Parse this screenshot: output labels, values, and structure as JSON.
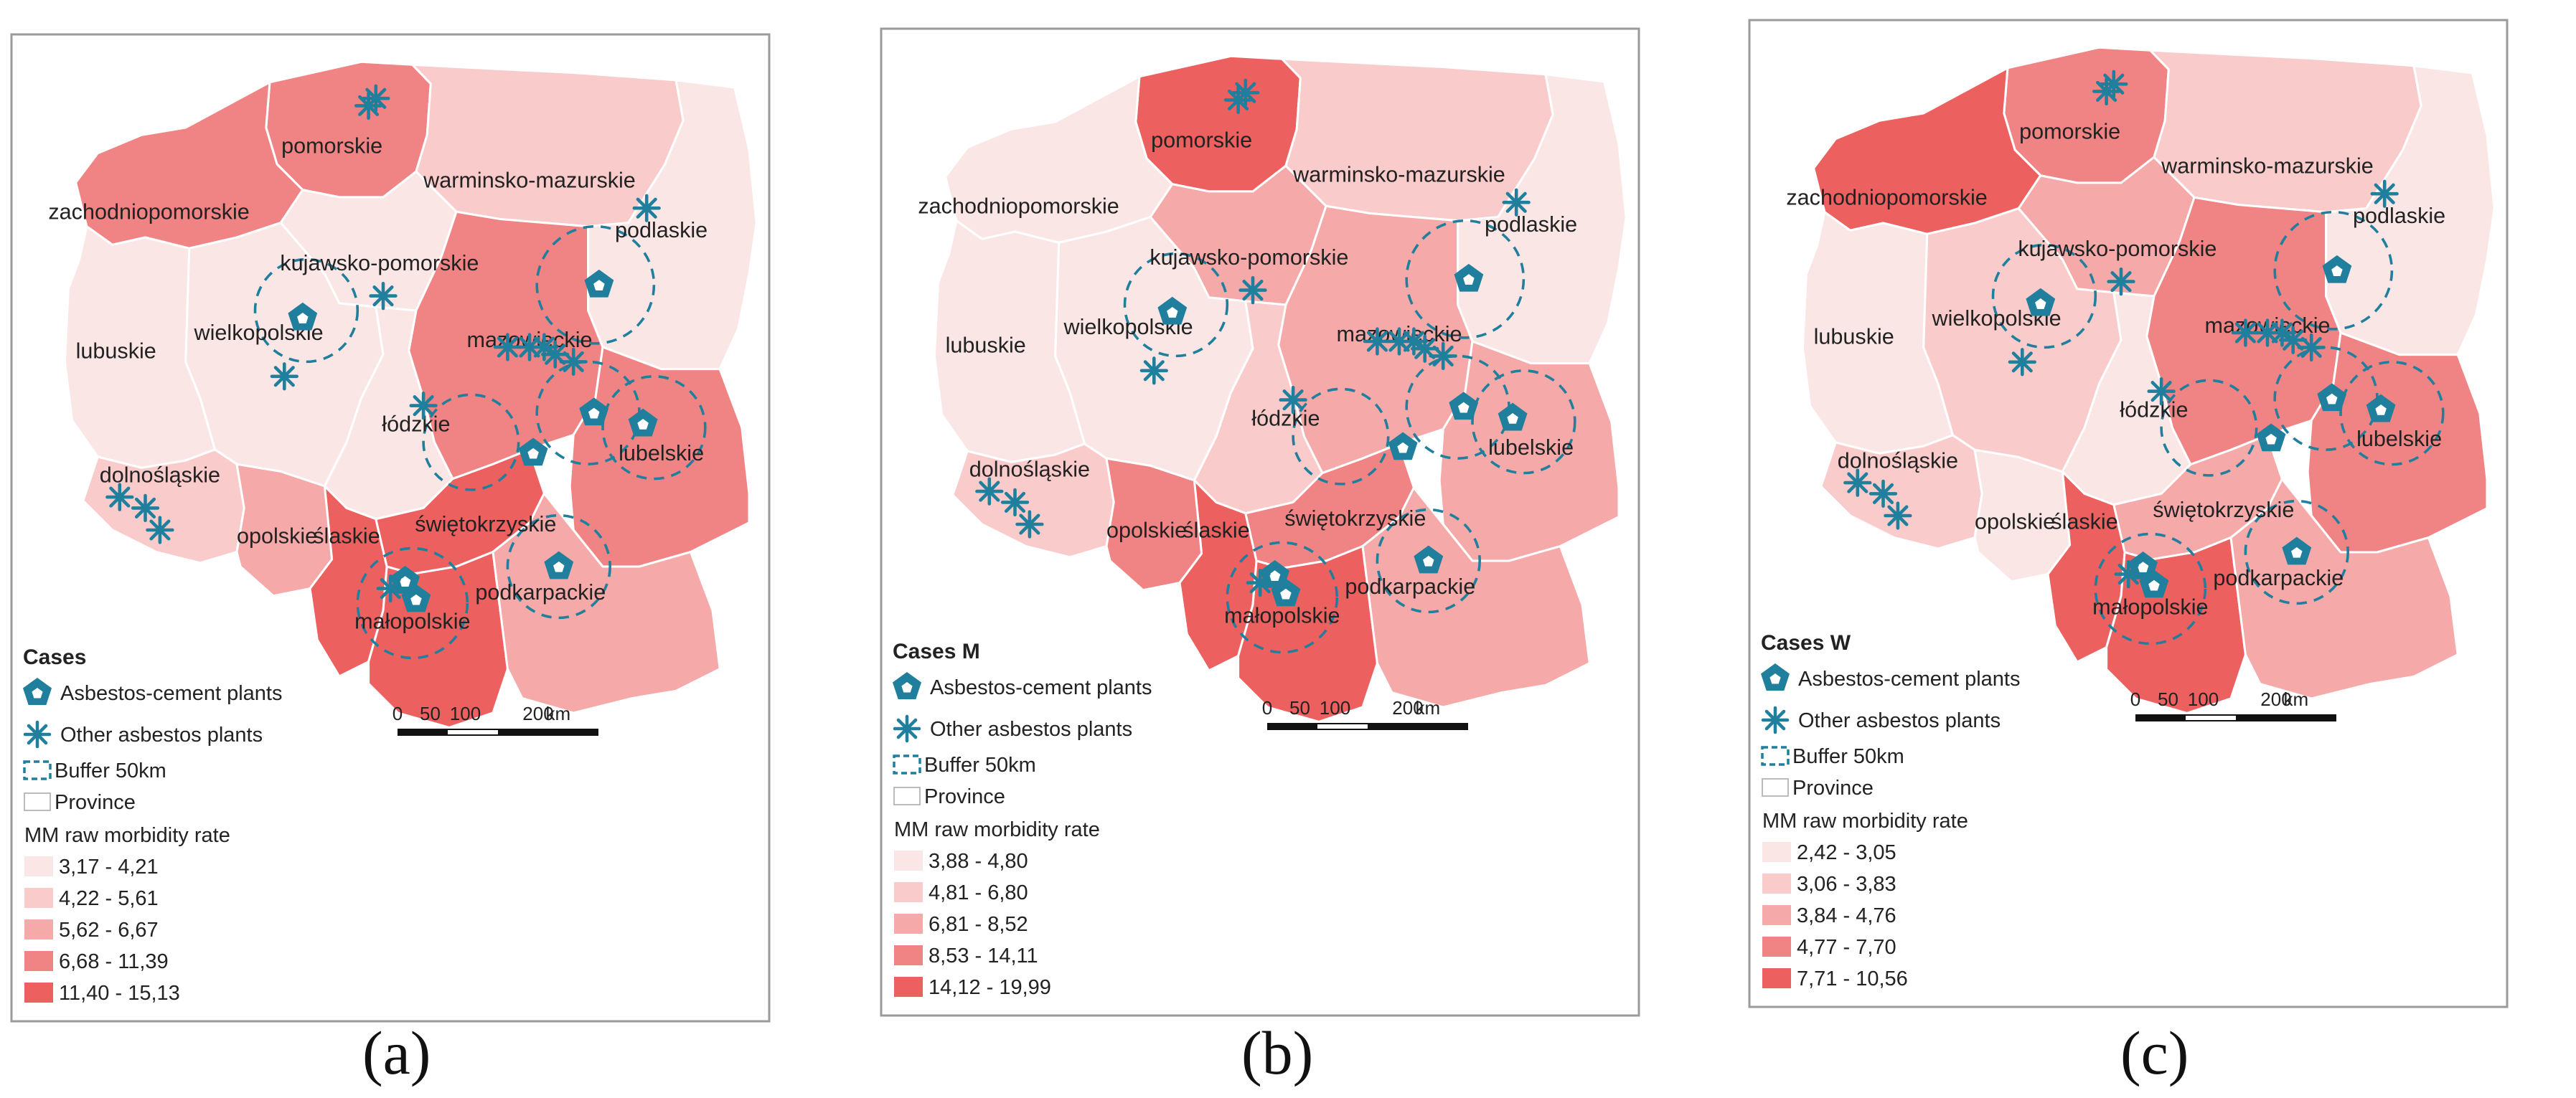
{
  "colors": {
    "class1": "#fbe6e6",
    "class2": "#f9cbcb",
    "class3": "#f5a9a9",
    "class4": "#f08484",
    "class5": "#ec6060",
    "plant": "#1f7f9c"
  },
  "panels": [
    {
      "id": "a",
      "caption": "(a)",
      "legend_title": "Cases",
      "legend": {
        "asbestos_cement": "Asbestos-cement plants",
        "other_plants": "Other asbestos plants",
        "buffer": "Buffer 50km",
        "province": "Province",
        "rate_title": "MM raw morbidity rate",
        "classes": [
          "3,17 - 4,21",
          "4,22 - 5,61",
          "5,62 - 6,67",
          "6,68 - 11,39",
          "11,40 - 15,13"
        ]
      },
      "scale": {
        "ticks": [
          "0",
          "50",
          "100",
          "200"
        ],
        "unit": "km"
      },
      "provinces": {
        "pomorskie": {
          "label": "pomorskie",
          "class": 4
        },
        "zachodniopomorskie": {
          "label": "zachodniopomorskie",
          "class": 4
        },
        "warminsko": {
          "label": "warminsko-mazurskie",
          "class": 2
        },
        "podlaskie": {
          "label": "podlaskie",
          "class": 1
        },
        "kujawsko": {
          "label": "kujawsko-pomorskie",
          "class": 1
        },
        "wielkopolskie": {
          "label": "wielkopolskie",
          "class": 1
        },
        "lubuskie": {
          "label": "lubuskie",
          "class": 1
        },
        "mazowieckie": {
          "label": "mazowieckie",
          "class": 4
        },
        "lodzkie": {
          "label": "łódzkie",
          "class": 1
        },
        "lubelskie": {
          "label": "lubelskie",
          "class": 4
        },
        "dolnoslaskie": {
          "label": "dolnośląskie",
          "class": 2
        },
        "opolskie": {
          "label": "opolskie",
          "class": 3
        },
        "slaskie": {
          "label": "ślaskie",
          "class": 5
        },
        "swietokrzyskie": {
          "label": "świętokrzyskie",
          "class": 5
        },
        "malopolskie": {
          "label": "małopolskie",
          "class": 5
        },
        "podkarpackie": {
          "label": "podkarpackie",
          "class": 3
        }
      }
    },
    {
      "id": "b",
      "caption": "(b)",
      "legend_title": "Cases M",
      "legend": {
        "asbestos_cement": "Asbestos-cement plants",
        "other_plants": "Other asbestos plants",
        "buffer": "Buffer 50km",
        "province": "Province",
        "rate_title": "MM raw morbidity rate",
        "classes": [
          "3,88 - 4,80",
          "4,81 - 6,80",
          "6,81 - 8,52",
          "8,53 - 14,11",
          "14,12 - 19,99"
        ]
      },
      "scale": {
        "ticks": [
          "0",
          "50",
          "100",
          "200"
        ],
        "unit": "km"
      },
      "provinces": {
        "pomorskie": {
          "label": "pomorskie",
          "class": 5
        },
        "zachodniopomorskie": {
          "label": "zachodniopomorskie",
          "class": 1
        },
        "warminsko": {
          "label": "warminsko-mazurskie",
          "class": 2
        },
        "podlaskie": {
          "label": "podlaskie",
          "class": 1
        },
        "kujawsko": {
          "label": "kujawsko-pomorskie",
          "class": 3
        },
        "wielkopolskie": {
          "label": "wielkopolskie",
          "class": 1
        },
        "lubuskie": {
          "label": "lubuskie",
          "class": 1
        },
        "mazowieckie": {
          "label": "mazowieckie",
          "class": 3
        },
        "lodzkie": {
          "label": "łódzkie",
          "class": 2
        },
        "lubelskie": {
          "label": "lubelskie",
          "class": 3
        },
        "dolnoslaskie": {
          "label": "dolnośląskie",
          "class": 2
        },
        "opolskie": {
          "label": "opolskie",
          "class": 4
        },
        "slaskie": {
          "label": "ślaskie",
          "class": 5
        },
        "swietokrzyskie": {
          "label": "świętokrzyskie",
          "class": 4
        },
        "malopolskie": {
          "label": "małopolskie",
          "class": 5
        },
        "podkarpackie": {
          "label": "podkarpackie",
          "class": 3
        }
      }
    },
    {
      "id": "c",
      "caption": "(c)",
      "legend_title": "Cases W",
      "legend": {
        "asbestos_cement": "Asbestos-cement plants",
        "other_plants": "Other asbestos plants",
        "buffer": "Buffer 50km",
        "province": "Province",
        "rate_title": "MM raw morbidity rate",
        "classes": [
          "2,42 - 3,05",
          "3,06 - 3,83",
          "3,84 - 4,76",
          "4,77 - 7,70",
          "7,71 - 10,56"
        ]
      },
      "scale": {
        "ticks": [
          "0",
          "50",
          "100",
          "200"
        ],
        "unit": "km"
      },
      "provinces": {
        "pomorskie": {
          "label": "pomorskie",
          "class": 4
        },
        "zachodniopomorskie": {
          "label": "zachodniopomorskie",
          "class": 5
        },
        "warminsko": {
          "label": "warminsko-mazurskie",
          "class": 2
        },
        "podlaskie": {
          "label": "podlaskie",
          "class": 1
        },
        "kujawsko": {
          "label": "kujawsko-pomorskie",
          "class": 3
        },
        "wielkopolskie": {
          "label": "wielkopolskie",
          "class": 2
        },
        "lubuskie": {
          "label": "lubuskie",
          "class": 1
        },
        "mazowieckie": {
          "label": "mazowieckie",
          "class": 4
        },
        "lodzkie": {
          "label": "łódzkie",
          "class": 1
        },
        "lubelskie": {
          "label": "lubelskie",
          "class": 4
        },
        "dolnoslaskie": {
          "label": "dolnośląskie",
          "class": 2
        },
        "opolskie": {
          "label": "opolskie",
          "class": 1
        },
        "slaskie": {
          "label": "ślaskie",
          "class": 5
        },
        "swietokrzyskie": {
          "label": "świętokrzyskie",
          "class": 3
        },
        "malopolskie": {
          "label": "małopolskie",
          "class": 5
        },
        "podkarpackie": {
          "label": "podkarpackie",
          "class": 3
        }
      }
    }
  ]
}
